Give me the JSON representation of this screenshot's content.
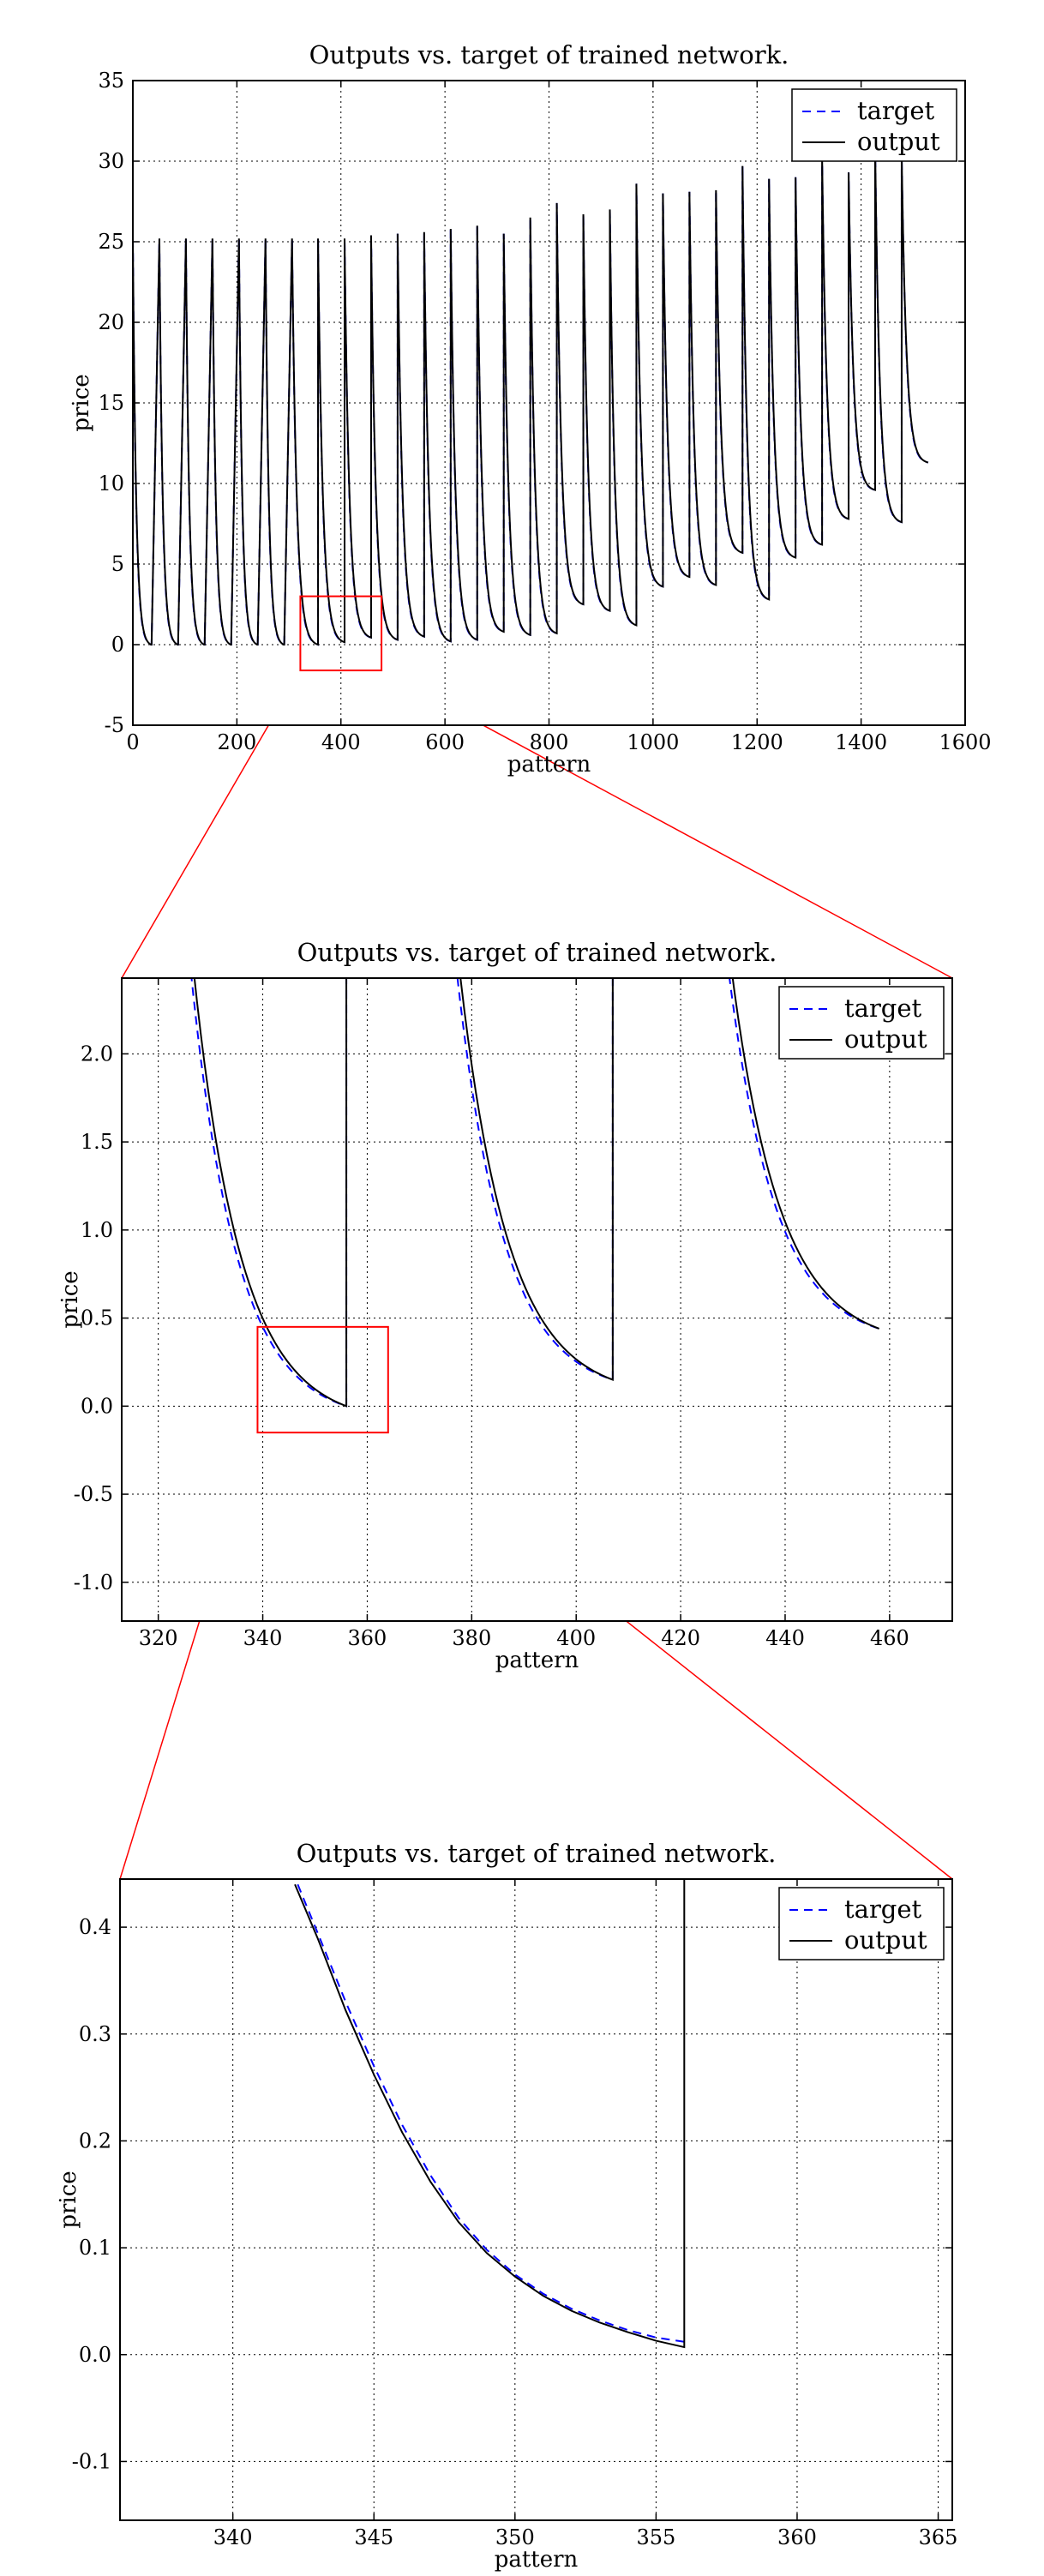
{
  "chart_data": [
    {
      "type": "line",
      "title": "Outputs vs. target of trained network.",
      "xlabel": "pattern",
      "ylabel": "price",
      "xlim": [
        0,
        1600
      ],
      "ylim": [
        -5,
        35
      ],
      "xticks": [
        0,
        200,
        400,
        600,
        800,
        1000,
        1200,
        1400,
        1600
      ],
      "xtick_labels": [
        "0",
        "200",
        "400",
        "600",
        "800",
        "1000",
        "1200",
        "1400",
        "1600"
      ],
      "yticks": [
        -5,
        0,
        5,
        10,
        15,
        20,
        25,
        30,
        35
      ],
      "ytick_labels": [
        "-5",
        "0",
        "5",
        "10",
        "15",
        "20",
        "25",
        "30",
        "35"
      ],
      "grid": true,
      "legend": "top-right",
      "zoom_box": {
        "x": [
          322,
          478
        ],
        "y": [
          -1.6,
          3.0
        ]
      },
      "series": [
        {
          "name": "target",
          "color": "#0000ff",
          "style": "dashed"
        },
        {
          "name": "output",
          "color": "#000000",
          "style": "solid"
        }
      ],
      "cycles": [
        {
          "start": 0,
          "end": 35,
          "peak": 25.2,
          "min": 0.0
        },
        {
          "start": 51,
          "end": 86,
          "peak": 25.2,
          "min": 0.0
        },
        {
          "start": 102,
          "end": 137,
          "peak": 25.2,
          "min": 0.0
        },
        {
          "start": 153,
          "end": 188,
          "peak": 25.2,
          "min": 0.0
        },
        {
          "start": 204,
          "end": 239,
          "peak": 25.2,
          "min": 0.0
        },
        {
          "start": 255,
          "end": 290,
          "peak": 25.2,
          "min": 0.0
        },
        {
          "start": 306,
          "end": 356,
          "peak": 25.2,
          "min": 0.0
        },
        {
          "start": 356,
          "end": 407,
          "peak": 25.2,
          "min": 0.15
        },
        {
          "start": 407,
          "end": 458,
          "peak": 25.2,
          "min": 0.44
        },
        {
          "start": 458,
          "end": 509,
          "peak": 25.4,
          "min": 0.3
        },
        {
          "start": 509,
          "end": 560,
          "peak": 25.5,
          "min": 0.5
        },
        {
          "start": 560,
          "end": 611,
          "peak": 25.6,
          "min": 0.2
        },
        {
          "start": 611,
          "end": 662,
          "peak": 25.8,
          "min": 0.3
        },
        {
          "start": 662,
          "end": 713,
          "peak": 26.0,
          "min": 0.8
        },
        {
          "start": 713,
          "end": 764,
          "peak": 25.5,
          "min": 0.6
        },
        {
          "start": 764,
          "end": 815,
          "peak": 26.5,
          "min": 0.7
        },
        {
          "start": 815,
          "end": 866,
          "peak": 27.4,
          "min": 2.5
        },
        {
          "start": 866,
          "end": 917,
          "peak": 26.7,
          "min": 2.1
        },
        {
          "start": 917,
          "end": 968,
          "peak": 27.0,
          "min": 1.2
        },
        {
          "start": 968,
          "end": 1019,
          "peak": 28.6,
          "min": 3.6
        },
        {
          "start": 1019,
          "end": 1070,
          "peak": 28.0,
          "min": 4.2
        },
        {
          "start": 1070,
          "end": 1121,
          "peak": 28.1,
          "min": 3.7
        },
        {
          "start": 1121,
          "end": 1172,
          "peak": 28.2,
          "min": 5.7
        },
        {
          "start": 1172,
          "end": 1223,
          "peak": 29.7,
          "min": 2.8
        },
        {
          "start": 1223,
          "end": 1274,
          "peak": 28.9,
          "min": 5.4
        },
        {
          "start": 1274,
          "end": 1325,
          "peak": 29.0,
          "min": 6.2
        },
        {
          "start": 1325,
          "end": 1376,
          "peak": 30.3,
          "min": 7.8
        },
        {
          "start": 1376,
          "end": 1427,
          "peak": 29.3,
          "min": 9.6
        },
        {
          "start": 1427,
          "end": 1478,
          "peak": 30.9,
          "min": 7.6
        },
        {
          "start": 1478,
          "end": 1529,
          "peak": 30.4,
          "min": 11.3
        }
      ]
    },
    {
      "type": "line",
      "title": "Outputs vs. target of trained network.",
      "xlabel": "pattern",
      "ylabel": "price",
      "xlim": [
        313,
        472
      ],
      "ylim": [
        -1.22,
        2.43
      ],
      "xticks": [
        320,
        340,
        360,
        380,
        400,
        420,
        440,
        460
      ],
      "xtick_labels": [
        "320",
        "340",
        "360",
        "380",
        "400",
        "420",
        "440",
        "460"
      ],
      "yticks": [
        -1.0,
        -0.5,
        0.0,
        0.5,
        1.0,
        1.5,
        2.0
      ],
      "ytick_labels": [
        "-1.0",
        "-0.5",
        "0.0",
        "0.5",
        "1.0",
        "1.5",
        "2.0"
      ],
      "grid": true,
      "legend": "top-right",
      "zoom_box": {
        "x": [
          339,
          364
        ],
        "y": [
          -0.15,
          0.45
        ]
      },
      "series": [
        {
          "name": "target",
          "color": "#0000ff",
          "style": "dashed"
        },
        {
          "name": "output",
          "color": "#000000",
          "style": "solid"
        }
      ],
      "cycles": [
        {
          "start": 306,
          "end": 356,
          "peak": 25.2,
          "min": 0.0
        },
        {
          "start": 356,
          "end": 407,
          "peak": 25.2,
          "min": 0.15
        },
        {
          "start": 407,
          "end": 458,
          "peak": 25.2,
          "min": 0.44
        }
      ]
    },
    {
      "type": "line",
      "title": "Outputs vs. target of trained network.",
      "xlabel": "pattern",
      "ylabel": "price",
      "xlim": [
        336,
        365.5
      ],
      "ylim": [
        -0.155,
        0.445
      ],
      "xticks": [
        340,
        345,
        350,
        355,
        360,
        365
      ],
      "xtick_labels": [
        "340",
        "345",
        "350",
        "355",
        "360",
        "365"
      ],
      "yticks": [
        -0.1,
        0.0,
        0.1,
        0.2,
        0.3,
        0.4
      ],
      "ytick_labels": [
        "-0.1",
        "0.0",
        "0.1",
        "0.2",
        "0.3",
        "0.4"
      ],
      "grid": true,
      "legend": "top-right",
      "series": [
        {
          "name": "target",
          "color": "#0000ff",
          "style": "dashed",
          "x": [
            342.3,
            343,
            344,
            345,
            346,
            347,
            348,
            349,
            350,
            351,
            352,
            353,
            354,
            355,
            356
          ],
          "y": [
            0.44,
            0.395,
            0.33,
            0.27,
            0.215,
            0.168,
            0.128,
            0.098,
            0.075,
            0.057,
            0.043,
            0.032,
            0.023,
            0.016,
            0.012
          ]
        },
        {
          "name": "output",
          "color": "#000000",
          "style": "solid",
          "x": [
            342.2,
            343,
            344,
            345,
            346,
            347,
            348,
            349,
            350,
            351,
            352,
            353,
            354,
            355,
            356,
            356,
            356
          ],
          "y": [
            0.44,
            0.39,
            0.322,
            0.262,
            0.208,
            0.162,
            0.124,
            0.095,
            0.073,
            0.055,
            0.041,
            0.03,
            0.021,
            0.013,
            0.007,
            0.007,
            0.445
          ]
        }
      ]
    }
  ]
}
